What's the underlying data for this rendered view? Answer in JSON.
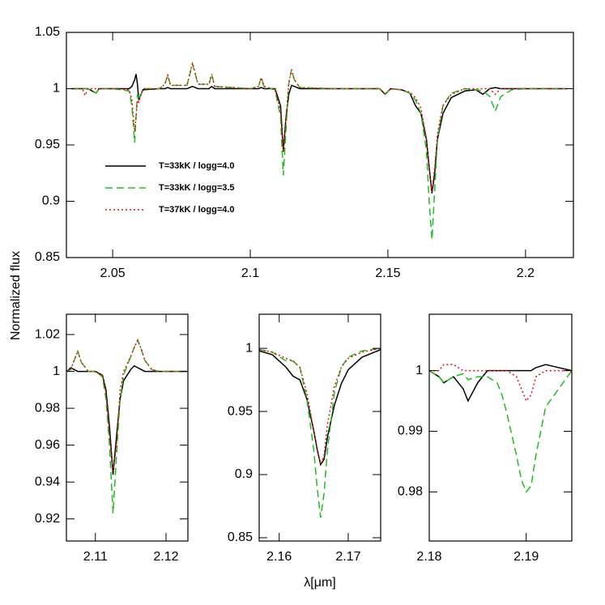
{
  "chart_data": [
    {
      "type": "line",
      "ylabel": "Normalized flux",
      "legend": true,
      "legend_corner": "left",
      "xlim": [
        2.0332,
        2.2174
      ],
      "ylim": [
        0.85,
        1.05
      ],
      "xticks": [
        2.05,
        2.1,
        2.15,
        2.2
      ],
      "yticks": [
        0.85,
        0.9,
        0.95,
        1,
        1.05
      ],
      "x": [
        2.035,
        2.039,
        2.04,
        2.041,
        2.044,
        2.045,
        2.05,
        2.056,
        2.057,
        2.058,
        2.0585,
        2.059,
        2.0595,
        2.061,
        2.067,
        2.069,
        2.07,
        2.071,
        2.077,
        2.079,
        2.081,
        2.085,
        2.086,
        2.087,
        2.1,
        2.103,
        2.104,
        2.105,
        2.109,
        2.111,
        2.112,
        2.113,
        2.114,
        2.115,
        2.116,
        2.118,
        2.13,
        2.147,
        2.149,
        2.151,
        2.155,
        2.158,
        2.16,
        2.162,
        2.164,
        2.165,
        2.166,
        2.167,
        2.168,
        2.17,
        2.173,
        2.178,
        2.182,
        2.1845,
        2.187,
        2.189,
        2.191,
        2.195,
        2.2,
        2.215
      ],
      "series": [
        {
          "name": "T=33kK / logg=4.0",
          "color": "#000000",
          "dash": "solid",
          "values": [
            1,
            1,
            1,
            1,
            0.996,
            1,
            1,
            1,
            1.002,
            1.008,
            1.013,
            1.004,
            0.99,
            0.999,
            1,
            1,
            1.001,
            1,
            1,
            1.002,
            1,
            1,
            1.002,
            1,
            1,
            1,
            1.001,
            1,
            1,
            0.985,
            0.944,
            0.975,
            0.995,
            1.003,
            1.002,
            1,
            1,
            1,
            0.995,
            1,
            0.999,
            0.996,
            0.985,
            0.978,
            0.955,
            0.93,
            0.907,
            0.925,
            0.955,
            0.978,
            0.992,
            0.998,
            0.999,
            0.995,
            1,
            1.001,
            1,
            1,
            1,
            1
          ]
        },
        {
          "name": "T=33kK / logg=3.5",
          "color": "#22bb22",
          "dash": "dashed",
          "values": [
            1,
            1,
            1,
            1,
            0.996,
            1,
            1,
            0.998,
            0.985,
            0.952,
            0.975,
            0.995,
            0.99,
            1,
            1,
            1.004,
            1.012,
            1.003,
            1.003,
            1.022,
            1.004,
            1.004,
            1.013,
            1.002,
            1,
            1.002,
            1.01,
            1.002,
            0.999,
            0.975,
            0.923,
            0.965,
            1.005,
            1.017,
            1.008,
            1.001,
            1,
            1,
            0.995,
            1,
            0.999,
            0.996,
            0.99,
            0.978,
            0.945,
            0.9,
            0.866,
            0.91,
            0.955,
            0.985,
            0.996,
            1,
            0.999,
            0.998,
            0.993,
            0.98,
            0.993,
            0.999,
            1,
            1
          ]
        },
        {
          "name": "T=37kK / logg=4.0",
          "color": "#dd1111",
          "dash": "dotted",
          "values": [
            1,
            1,
            0.994,
            1,
            1,
            1,
            1,
            0.999,
            0.99,
            0.962,
            0.975,
            0.99,
            0.988,
            1,
            1,
            1.004,
            1.012,
            1.003,
            1.003,
            1.023,
            1.004,
            1.004,
            1.013,
            1.002,
            1,
            1.002,
            1.01,
            1.002,
            0.999,
            0.98,
            0.945,
            0.975,
            1.005,
            1.017,
            1.008,
            1.001,
            1,
            1,
            0.995,
            1,
            0.999,
            0.997,
            0.992,
            0.983,
            0.955,
            0.93,
            0.908,
            0.93,
            0.96,
            0.985,
            0.995,
            1,
            1,
            1,
            1,
            0.995,
            1,
            1,
            1,
            1
          ]
        }
      ]
    },
    {
      "type": "line",
      "xlim": [
        2.1059,
        2.1231
      ],
      "ylim": [
        0.908,
        1.031
      ],
      "xticks": [
        2.11,
        2.12
      ],
      "yticks": [
        0.92,
        0.94,
        0.96,
        0.98,
        1,
        1.02
      ],
      "x": [
        2.106,
        2.1065,
        2.107,
        2.1075,
        2.108,
        2.109,
        2.11,
        2.111,
        2.1115,
        2.112,
        2.1125,
        2.113,
        2.1135,
        2.114,
        2.115,
        2.1155,
        2.116,
        2.1165,
        2.117,
        2.118,
        2.119,
        2.12,
        2.123
      ],
      "series": [
        {
          "color": "#000000",
          "dash": "solid",
          "values": [
            1,
            1.002,
            1.001,
            1,
            1,
            1,
            1,
            0.998,
            0.99,
            0.97,
            0.944,
            0.965,
            0.985,
            0.995,
            1.001,
            1.003,
            1.002,
            1.001,
            1,
            1,
            1,
            1,
            1
          ]
        },
        {
          "color": "#22bb22",
          "dash": "dashed",
          "values": [
            1,
            1.001,
            1.006,
            1.011,
            1.005,
            1,
            1,
            0.997,
            0.985,
            0.96,
            0.923,
            0.955,
            0.985,
            0.998,
            1.008,
            1.013,
            1.017,
            1.012,
            1.006,
            1.001,
            1,
            1,
            1
          ]
        },
        {
          "color": "#dd1111",
          "dash": "dotted",
          "values": [
            1,
            1.001,
            1.006,
            1.011,
            1.005,
            1,
            1,
            0.998,
            0.988,
            0.965,
            0.946,
            0.96,
            0.99,
            1,
            1.008,
            1.013,
            1.017,
            1.012,
            1.006,
            1.001,
            1,
            1,
            1
          ]
        }
      ]
    },
    {
      "type": "line",
      "xlabel": "λ[μm]",
      "xlim": [
        2.1571,
        2.1747
      ],
      "ylim": [
        0.8474,
        1.027
      ],
      "xticks": [
        2.16,
        2.17
      ],
      "yticks": [
        0.85,
        0.9,
        0.95,
        1
      ],
      "x": [
        2.1571,
        2.159,
        2.161,
        2.162,
        2.163,
        2.164,
        2.165,
        2.1655,
        2.166,
        2.1665,
        2.167,
        2.168,
        2.169,
        2.17,
        2.172,
        2.1747
      ],
      "series": [
        {
          "color": "#000000",
          "dash": "solid",
          "values": [
            0.998,
            0.995,
            0.985,
            0.978,
            0.975,
            0.96,
            0.935,
            0.92,
            0.908,
            0.912,
            0.93,
            0.955,
            0.972,
            0.983,
            0.993,
            0.999
          ]
        },
        {
          "color": "#22bb22",
          "dash": "dashed",
          "values": [
            0.999,
            0.997,
            0.99,
            0.99,
            0.985,
            0.96,
            0.92,
            0.89,
            0.866,
            0.885,
            0.92,
            0.965,
            0.985,
            0.993,
            0.998,
            1
          ]
        },
        {
          "color": "#dd1111",
          "dash": "dotted",
          "values": [
            0.999,
            0.997,
            0.992,
            0.99,
            0.985,
            0.965,
            0.935,
            0.92,
            0.908,
            0.915,
            0.94,
            0.97,
            0.985,
            0.992,
            0.997,
            1
          ]
        }
      ]
    },
    {
      "type": "line",
      "xlim": [
        2.18,
        2.1947
      ],
      "ylim": [
        0.9719,
        1.0093
      ],
      "xticks": [
        2.18,
        2.19
      ],
      "yticks": [
        0.98,
        0.99,
        1
      ],
      "x": [
        2.18,
        2.181,
        2.1815,
        2.1825,
        2.1835,
        2.184,
        2.185,
        2.186,
        2.187,
        2.1875,
        2.188,
        2.189,
        2.1895,
        2.19,
        2.1905,
        2.191,
        2.192,
        2.1947
      ],
      "series": [
        {
          "color": "#000000",
          "dash": "solid",
          "values": [
            1,
            0.999,
            0.998,
            0.999,
            0.997,
            0.995,
            0.998,
            1,
            1,
            1,
            1,
            1,
            1,
            1,
            1,
            1.0005,
            1.001,
            1
          ]
        },
        {
          "color": "#22bb22",
          "dash": "dashed",
          "values": [
            1,
            0.999,
            0.998,
            0.999,
            0.9995,
            0.9985,
            0.999,
            0.999,
            0.998,
            0.996,
            0.993,
            0.986,
            0.982,
            0.98,
            0.981,
            0.986,
            0.994,
            1
          ]
        },
        {
          "color": "#dd1111",
          "dash": "dotted",
          "values": [
            1,
            1,
            1.001,
            1.001,
            1,
            1,
            1,
            1,
            1,
            1,
            1,
            0.999,
            0.997,
            0.995,
            0.996,
            0.999,
            1,
            1
          ]
        }
      ]
    }
  ]
}
